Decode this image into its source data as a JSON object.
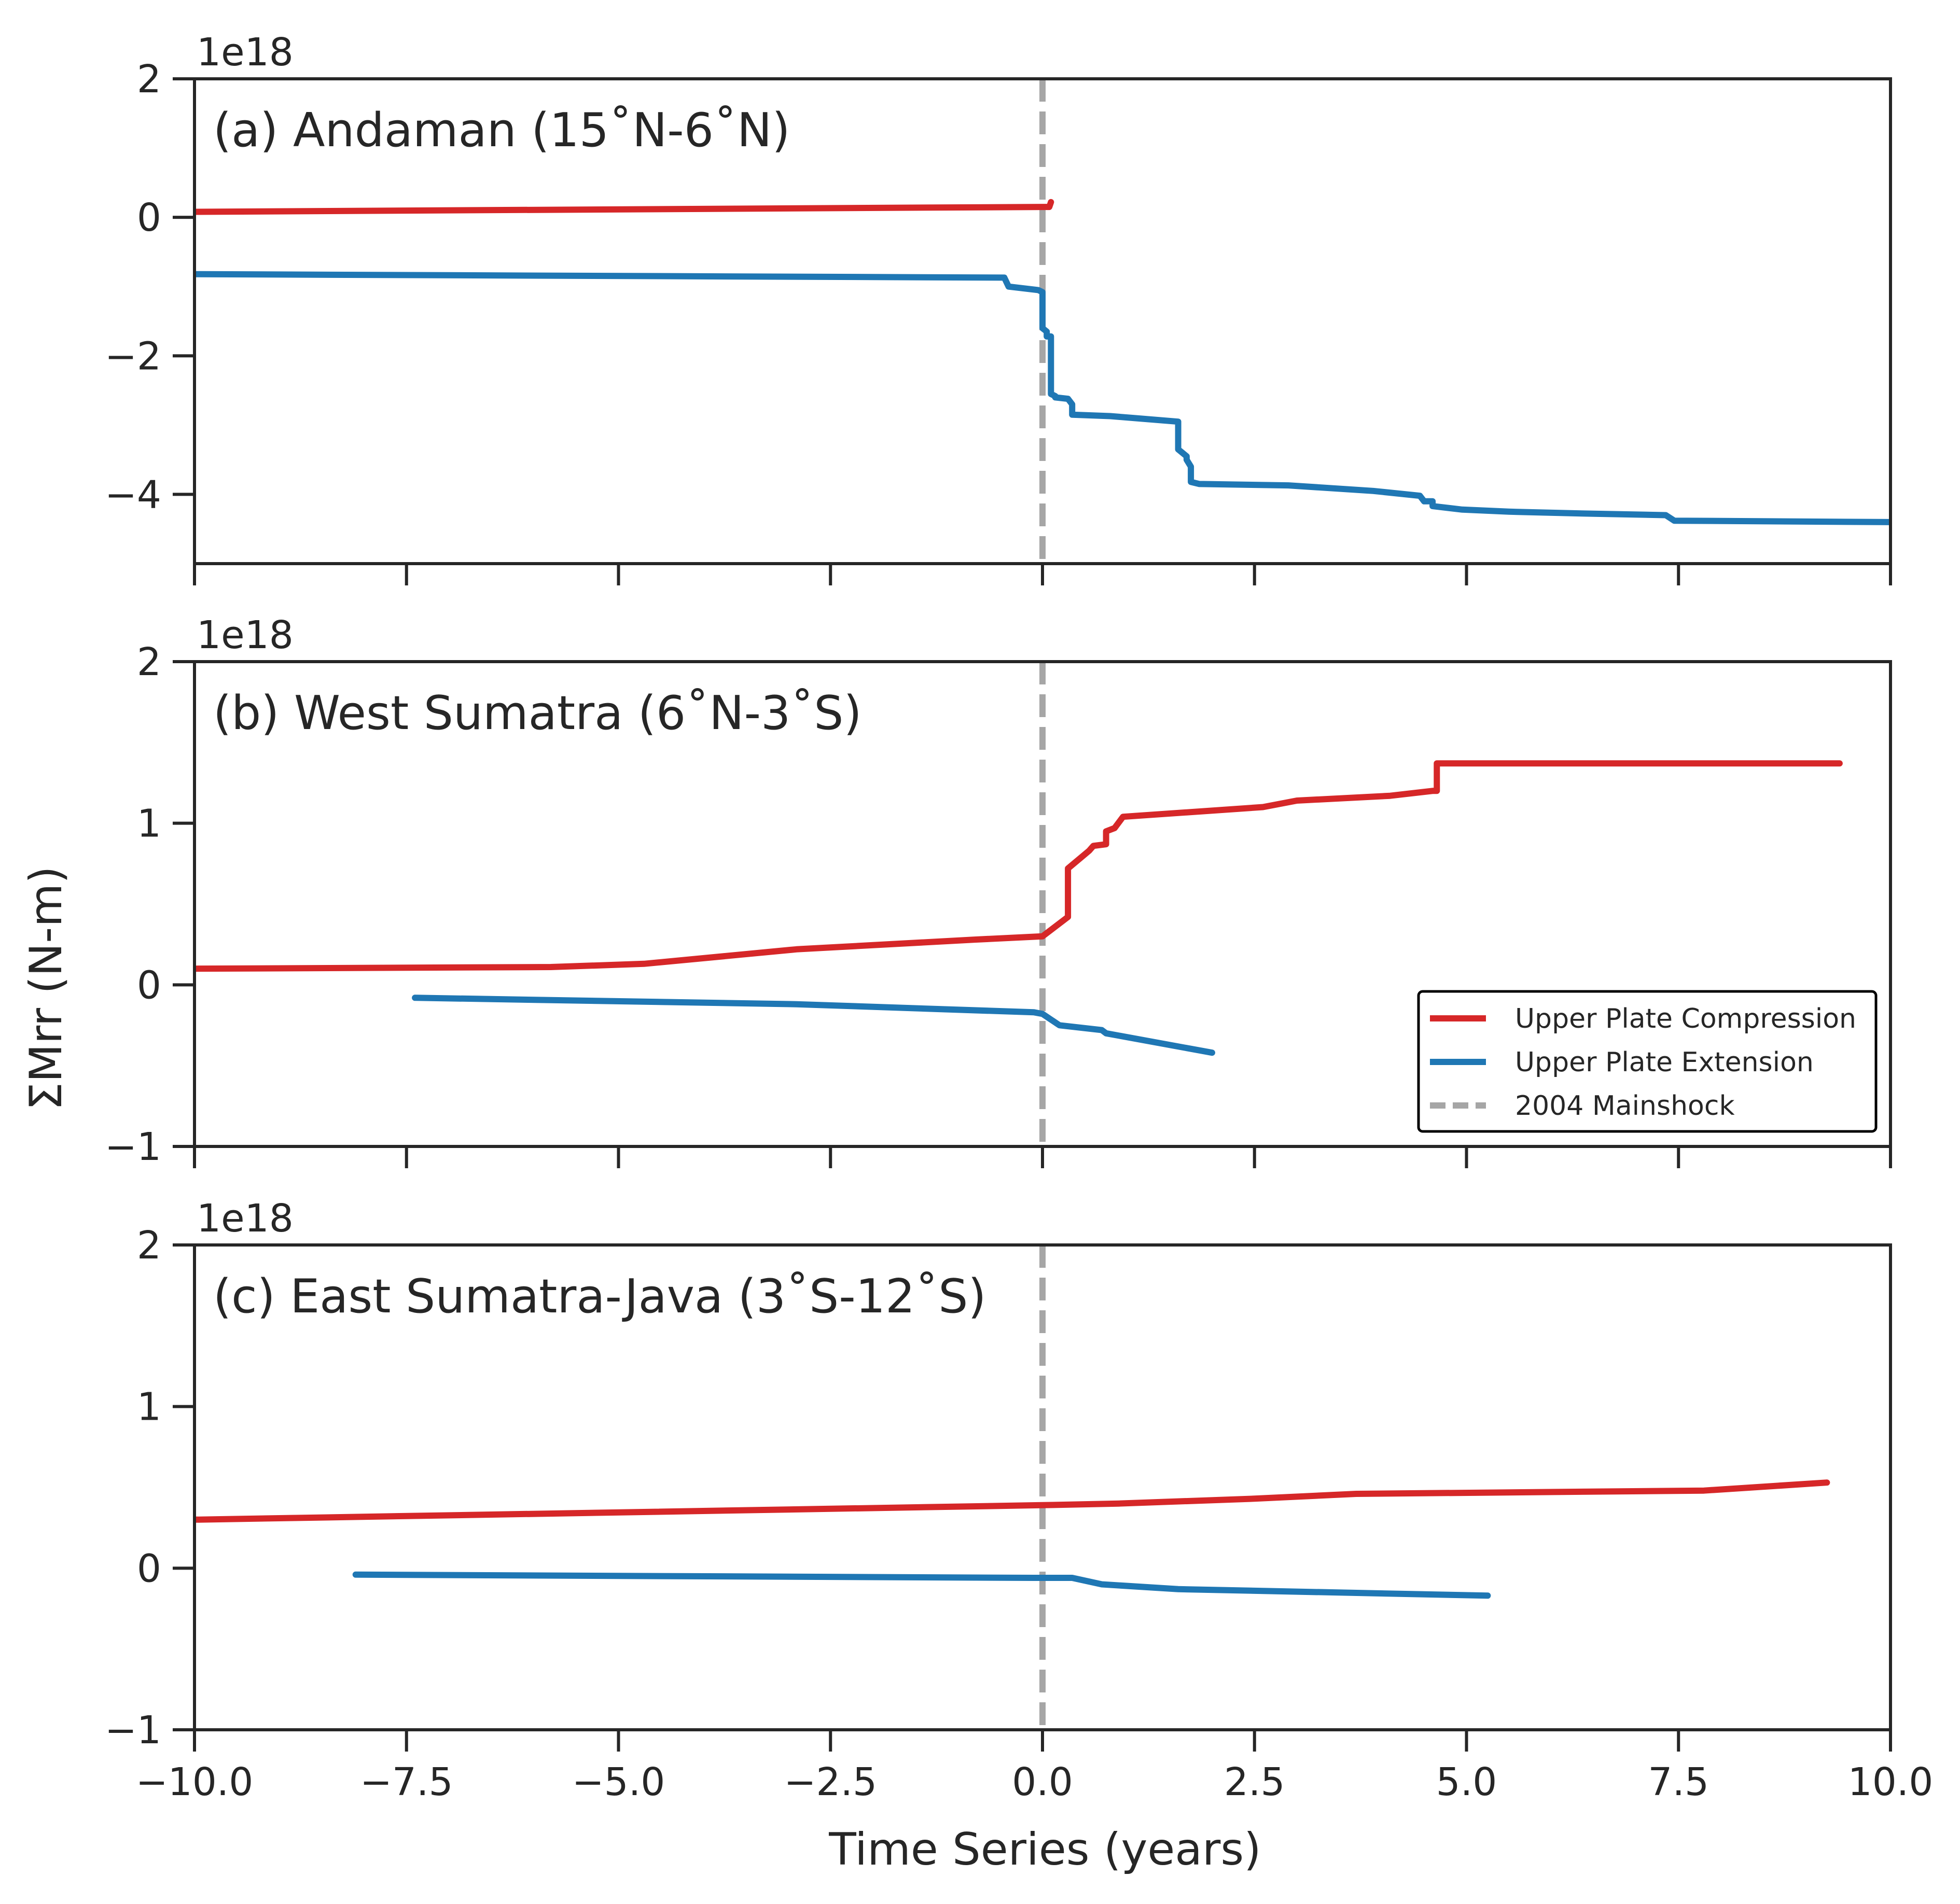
{
  "figure": {
    "ylabel": "ΣMrr (N-m)",
    "xlabel": "Time Series (years)"
  },
  "colors": {
    "compression": "#d62728",
    "extension": "#1f77b4",
    "mainshock": "#a6a6a6",
    "axes": "#262626"
  },
  "legend": {
    "placement": "lower-right",
    "location_panel": 1,
    "items": [
      {
        "label": "Upper Plate Compression",
        "style": "solid",
        "color": "#d62728"
      },
      {
        "label": "Upper Plate Extension",
        "style": "solid",
        "color": "#1f77b4"
      },
      {
        "label": "2004 Mainshock",
        "style": "dashed",
        "color": "#a6a6a6"
      }
    ]
  },
  "chart_data": [
    {
      "type": "line",
      "title": "(a) Andaman (15˚N-6˚N)",
      "xlabel": "",
      "ylabel": "ΣMrr (N-m)",
      "y_offset_label": "1e18",
      "xlim": [
        -10,
        10
      ],
      "ylim": [
        -5,
        2
      ],
      "xticks": [
        -10,
        -7.5,
        -5,
        -2.5,
        0,
        2.5,
        5,
        7.5,
        10
      ],
      "xtick_labels_visible": false,
      "yticks": [
        -4,
        -2,
        0,
        2
      ],
      "ytick_labels": [
        "−4",
        "−2",
        "0",
        "2"
      ],
      "grid": false,
      "vline": {
        "x": 0,
        "label": "2004 Mainshock"
      },
      "series": [
        {
          "name": "Upper Plate Compression",
          "x": [
            -10,
            0,
            0.08,
            0.1
          ],
          "y": [
            0.08,
            0.15,
            0.15,
            0.22
          ]
        },
        {
          "name": "Upper Plate Extension",
          "x": [
            -10,
            -0.45,
            -0.4,
            -0.05,
            0,
            0,
            0.05,
            0.05,
            0.1,
            0.1,
            0.15,
            0.15,
            0.3,
            0.35,
            0.35,
            0.8,
            1.1,
            1.6,
            1.6,
            1.65,
            1.7,
            1.7,
            1.75,
            1.75,
            1.85,
            2.9,
            3.9,
            4.45,
            4.5,
            4.6,
            4.6,
            4.95,
            5.5,
            6.5,
            7.35,
            7.45,
            10
          ],
          "y": [
            -0.82,
            -0.87,
            -1.0,
            -1.05,
            -1.08,
            -1.6,
            -1.65,
            -1.72,
            -1.72,
            -2.55,
            -2.58,
            -2.6,
            -2.62,
            -2.7,
            -2.85,
            -2.87,
            -2.9,
            -2.95,
            -3.35,
            -3.4,
            -3.45,
            -3.5,
            -3.6,
            -3.82,
            -3.85,
            -3.87,
            -3.95,
            -4.02,
            -4.1,
            -4.1,
            -4.17,
            -4.22,
            -4.25,
            -4.28,
            -4.3,
            -4.38,
            -4.4
          ]
        }
      ]
    },
    {
      "type": "line",
      "title": "(b) West Sumatra (6˚N-3˚S)",
      "xlabel": "",
      "ylabel": "ΣMrr (N-m)",
      "y_offset_label": "1e18",
      "xlim": [
        -10,
        10
      ],
      "ylim": [
        -1,
        2
      ],
      "xticks": [
        -10,
        -7.5,
        -5,
        -2.5,
        0,
        2.5,
        5,
        7.5,
        10
      ],
      "xtick_labels_visible": false,
      "yticks": [
        -1,
        0,
        1,
        2
      ],
      "ytick_labels": [
        "−1",
        "0",
        "1",
        "2"
      ],
      "grid": false,
      "vline": {
        "x": 0,
        "label": "2004 Mainshock"
      },
      "series": [
        {
          "name": "Upper Plate Compression",
          "x": [
            -10,
            -5.8,
            -4.7,
            -2.9,
            -0.8,
            0,
            0.3,
            0.3,
            0.55,
            0.6,
            0.75,
            0.75,
            0.85,
            0.95,
            2.6,
            3.0,
            4.1,
            4.6,
            4.65,
            4.65,
            9.4
          ],
          "y": [
            0.1,
            0.11,
            0.13,
            0.22,
            0.28,
            0.3,
            0.42,
            0.72,
            0.83,
            0.86,
            0.87,
            0.95,
            0.97,
            1.04,
            1.1,
            1.14,
            1.17,
            1.2,
            1.2,
            1.37,
            1.37
          ]
        },
        {
          "name": "Upper Plate Extension",
          "x": [
            -7.4,
            -2.9,
            -0.1,
            0,
            0.2,
            0.7,
            0.75,
            2.0
          ],
          "y": [
            -0.08,
            -0.12,
            -0.17,
            -0.18,
            -0.25,
            -0.28,
            -0.3,
            -0.42
          ]
        }
      ]
    },
    {
      "type": "line",
      "title": "(c) East Sumatra-Java (3˚S-12˚S)",
      "xlabel": "Time Series (years)",
      "ylabel": "ΣMrr (N-m)",
      "y_offset_label": "1e18",
      "xlim": [
        -10,
        10
      ],
      "ylim": [
        -1,
        2
      ],
      "xticks": [
        -10,
        -7.5,
        -5,
        -2.5,
        0,
        2.5,
        5,
        7.5,
        10
      ],
      "xtick_labels_visible": true,
      "xtick_labels": [
        "−10.0",
        "−7.5",
        "−5.0",
        "−2.5",
        "0.0",
        "2.5",
        "5.0",
        "7.5",
        "10.0"
      ],
      "yticks": [
        -1,
        0,
        1,
        2
      ],
      "ytick_labels": [
        "−1",
        "0",
        "1",
        "2"
      ],
      "grid": false,
      "vline": {
        "x": 0,
        "label": "2004 Mainshock"
      },
      "series": [
        {
          "name": "Upper Plate Compression",
          "x": [
            -10,
            0,
            0.9,
            2.5,
            3.7,
            7.8,
            9.25
          ],
          "y": [
            0.3,
            0.39,
            0.4,
            0.43,
            0.46,
            0.48,
            0.53
          ]
        },
        {
          "name": "Upper Plate Extension",
          "x": [
            -8.1,
            -0.1,
            0.35,
            0.7,
            1.6,
            5.25
          ],
          "y": [
            -0.04,
            -0.06,
            -0.06,
            -0.1,
            -0.13,
            -0.17
          ]
        }
      ]
    }
  ]
}
